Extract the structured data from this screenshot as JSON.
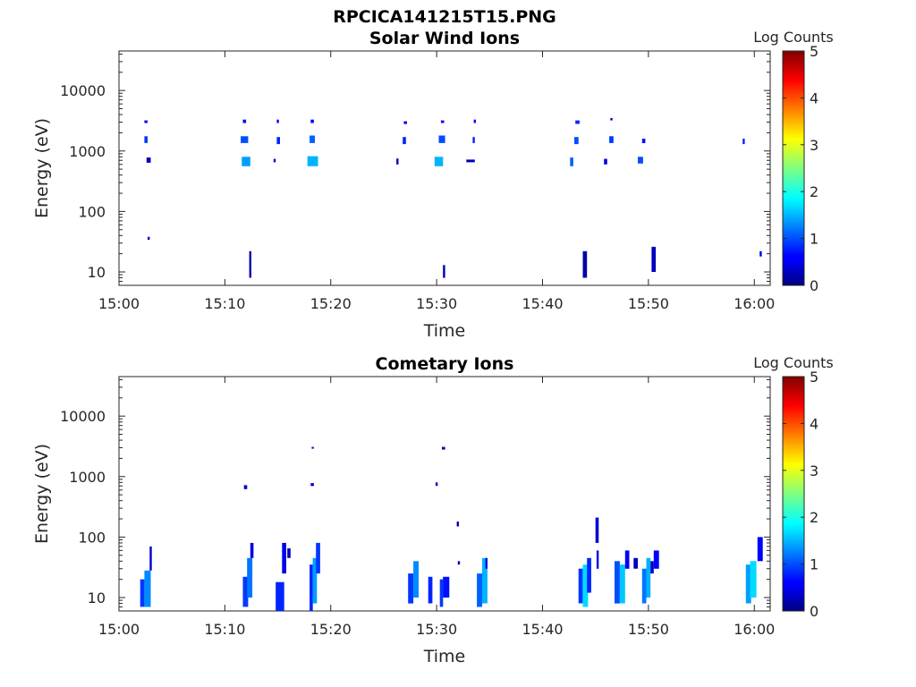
{
  "figure_title": "RPCICA141215T15.PNG",
  "chart_data": [
    {
      "type": "heatmap",
      "title": "Solar Wind Ions",
      "xlabel": "Time",
      "ylabel": "Energy (eV)",
      "x_tick_labels": [
        "15:00",
        "15:10",
        "15:20",
        "15:30",
        "15:40",
        "15:50",
        "16:00"
      ],
      "x_tick_minutes": [
        0,
        10,
        20,
        30,
        40,
        50,
        60
      ],
      "xlim_minutes": [
        0,
        61.5
      ],
      "y_scale": "log",
      "ylim": [
        6,
        45000
      ],
      "y_tick_labels": [
        "10",
        "100",
        "1000",
        "10000"
      ],
      "y_tick_values": [
        10,
        100,
        1000,
        10000
      ],
      "colorbar": {
        "label": "Log Counts",
        "range": [
          0,
          5
        ],
        "tick_labels": [
          "0",
          "1",
          "2",
          "3",
          "4",
          "5"
        ],
        "colormap": "jet"
      },
      "cells": [
        [
          2.4,
          2.7,
          2900,
          3200,
          0.6
        ],
        [
          2.4,
          2.7,
          1350,
          1750,
          0.9
        ],
        [
          2.6,
          3.0,
          640,
          780,
          0.3
        ],
        [
          2.7,
          2.9,
          34,
          38,
          0.3
        ],
        [
          11.7,
          12.0,
          2900,
          3300,
          0.6
        ],
        [
          11.5,
          12.2,
          1350,
          1750,
          1.0
        ],
        [
          11.6,
          12.4,
          560,
          800,
          1.4
        ],
        [
          12.3,
          12.5,
          8,
          22,
          0.2
        ],
        [
          14.9,
          15.1,
          2900,
          3300,
          0.6
        ],
        [
          14.9,
          15.2,
          1300,
          1700,
          0.8
        ],
        [
          14.6,
          14.8,
          650,
          740,
          0.4
        ],
        [
          18.1,
          18.4,
          2900,
          3300,
          0.6
        ],
        [
          18.0,
          18.5,
          1350,
          1800,
          1.1
        ],
        [
          17.8,
          18.8,
          560,
          820,
          1.5
        ],
        [
          26.9,
          27.2,
          2800,
          3100,
          0.5
        ],
        [
          26.8,
          27.1,
          1300,
          1700,
          0.8
        ],
        [
          26.2,
          26.4,
          600,
          750,
          0.3
        ],
        [
          30.4,
          30.7,
          2900,
          3200,
          0.6
        ],
        [
          30.2,
          30.8,
          1350,
          1800,
          1.0
        ],
        [
          29.8,
          30.6,
          560,
          800,
          1.5
        ],
        [
          30.6,
          30.8,
          8,
          13,
          0.2
        ],
        [
          33.5,
          33.7,
          2900,
          3300,
          0.6
        ],
        [
          33.4,
          33.6,
          1350,
          1700,
          0.8
        ],
        [
          32.8,
          33.6,
          650,
          720,
          0.3
        ],
        [
          43.1,
          43.5,
          2800,
          3200,
          0.8
        ],
        [
          43.0,
          43.4,
          1300,
          1700,
          1.0
        ],
        [
          42.6,
          42.9,
          560,
          780,
          1.1
        ],
        [
          43.8,
          44.2,
          8,
          22,
          0.2
        ],
        [
          46.4,
          46.6,
          3200,
          3500,
          0.4
        ],
        [
          46.3,
          46.7,
          1350,
          1750,
          0.9
        ],
        [
          45.8,
          46.1,
          600,
          740,
          0.5
        ],
        [
          49.4,
          49.7,
          1350,
          1600,
          0.7
        ],
        [
          49.0,
          49.5,
          620,
          800,
          1.0
        ],
        [
          50.3,
          50.7,
          10,
          26,
          0.3
        ],
        [
          58.9,
          59.1,
          1300,
          1600,
          0.8
        ],
        [
          60.5,
          60.7,
          18,
          22,
          0.5
        ]
      ]
    },
    {
      "type": "heatmap",
      "title": "Cometary Ions",
      "xlabel": "Time",
      "ylabel": "Energy (eV)",
      "x_tick_labels": [
        "15:00",
        "15:10",
        "15:20",
        "15:30",
        "15:40",
        "15:50",
        "16:00"
      ],
      "x_tick_minutes": [
        0,
        10,
        20,
        30,
        40,
        50,
        60
      ],
      "xlim_minutes": [
        0,
        61.5
      ],
      "y_scale": "log",
      "ylim": [
        6,
        45000
      ],
      "y_tick_labels": [
        "10",
        "100",
        "1000",
        "10000"
      ],
      "y_tick_values": [
        10,
        100,
        1000,
        10000
      ],
      "colorbar": {
        "label": "Log Counts",
        "range": [
          0,
          5
        ],
        "tick_labels": [
          "0",
          "1",
          "2",
          "3",
          "4",
          "5"
        ],
        "colormap": "jet"
      },
      "cells": [
        [
          2.0,
          2.4,
          7,
          20,
          0.9
        ],
        [
          2.4,
          3.0,
          7,
          28,
          1.3
        ],
        [
          2.9,
          3.1,
          28,
          70,
          0.4
        ],
        [
          11.7,
          12.2,
          7,
          22,
          0.9
        ],
        [
          12.1,
          12.6,
          10,
          45,
          1.2
        ],
        [
          12.4,
          12.7,
          45,
          80,
          0.5
        ],
        [
          11.8,
          12.1,
          620,
          720,
          0.4
        ],
        [
          14.8,
          15.6,
          6,
          18,
          0.8
        ],
        [
          15.4,
          15.8,
          25,
          80,
          0.5
        ],
        [
          15.9,
          16.2,
          45,
          65,
          0.3
        ],
        [
          18.0,
          18.3,
          6,
          35,
          0.8
        ],
        [
          18.3,
          18.7,
          8,
          45,
          1.4
        ],
        [
          18.6,
          19.0,
          25,
          80,
          0.9
        ],
        [
          18.1,
          18.4,
          700,
          780,
          0.4
        ],
        [
          18.2,
          18.4,
          2900,
          3100,
          0.3
        ],
        [
          27.3,
          27.8,
          8,
          25,
          0.9
        ],
        [
          27.8,
          28.3,
          10,
          40,
          1.3
        ],
        [
          29.2,
          29.6,
          8,
          22,
          0.8
        ],
        [
          29.9,
          30.1,
          700,
          800,
          0.4
        ],
        [
          30.5,
          30.8,
          2800,
          3100,
          0.3
        ],
        [
          30.3,
          30.6,
          7,
          20,
          0.9
        ],
        [
          30.6,
          31.2,
          10,
          22,
          0.7
        ],
        [
          32.0,
          32.2,
          35,
          40,
          0.3
        ],
        [
          31.9,
          32.1,
          150,
          180,
          0.3
        ],
        [
          33.8,
          34.3,
          7,
          25,
          1.1
        ],
        [
          34.3,
          34.8,
          8,
          45,
          1.5
        ],
        [
          34.6,
          34.8,
          30,
          45,
          0.5
        ],
        [
          43.4,
          43.8,
          8,
          30,
          0.9
        ],
        [
          43.8,
          44.3,
          7,
          35,
          1.7
        ],
        [
          44.2,
          44.6,
          12,
          45,
          0.8
        ],
        [
          45.0,
          45.3,
          80,
          210,
          0.4
        ],
        [
          45.1,
          45.3,
          30,
          60,
          0.5
        ],
        [
          46.8,
          47.3,
          8,
          40,
          1.0
        ],
        [
          47.3,
          47.8,
          8,
          35,
          1.6
        ],
        [
          47.8,
          48.2,
          30,
          60,
          0.6
        ],
        [
          48.6,
          49.0,
          30,
          45,
          0.3
        ],
        [
          49.4,
          49.8,
          8,
          30,
          1.2
        ],
        [
          49.8,
          50.2,
          10,
          45,
          1.5
        ],
        [
          50.5,
          51.0,
          30,
          60,
          0.6
        ],
        [
          50.2,
          50.5,
          25,
          40,
          0.4
        ],
        [
          59.2,
          59.7,
          8,
          35,
          1.4
        ],
        [
          59.6,
          60.2,
          10,
          40,
          1.7
        ],
        [
          60.3,
          60.8,
          40,
          100,
          0.6
        ]
      ]
    }
  ]
}
